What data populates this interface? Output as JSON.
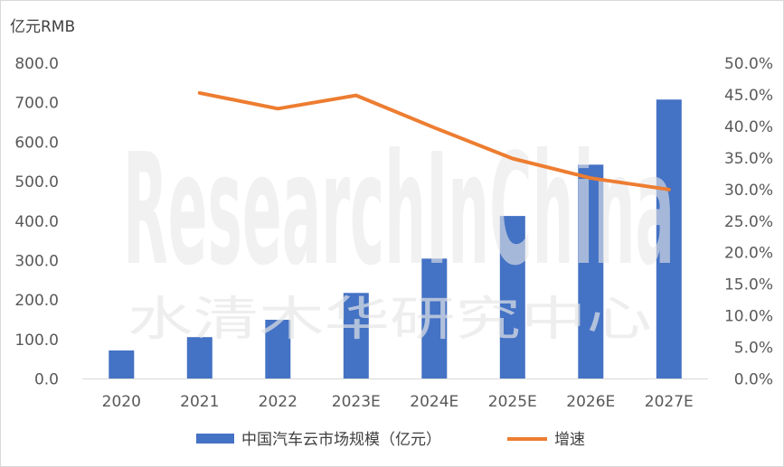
{
  "chart_data": {
    "type": "bar+line",
    "categories": [
      "2020",
      "2021",
      "2022",
      "2023E",
      "2024E",
      "2025E",
      "2026E",
      "2027E"
    ],
    "series": [
      {
        "name": "中国汽车云市场规模（亿元）",
        "type": "bar",
        "axis": "left",
        "values": [
          72,
          106,
          150,
          218,
          305,
          413,
          543,
          708
        ]
      },
      {
        "name": "增速",
        "type": "line",
        "axis": "right",
        "values": [
          null,
          45.3,
          42.8,
          44.9,
          39.8,
          34.9,
          31.8,
          30.0
        ]
      }
    ],
    "left_axis": {
      "unit_label": "亿元RMB",
      "ylim": [
        0,
        800
      ],
      "ticks": [
        "0.0",
        "100.0",
        "200.0",
        "300.0",
        "400.0",
        "500.0",
        "600.0",
        "700.0",
        "800.0"
      ]
    },
    "right_axis": {
      "ylim": [
        0,
        50
      ],
      "ticks": [
        "0.0%",
        "5.0%",
        "10.0%",
        "15.0%",
        "20.0%",
        "25.0%",
        "30.0%",
        "35.0%",
        "40.0%",
        "45.0%",
        "50.0%"
      ]
    },
    "grid": false,
    "legend_position": "bottom",
    "colors": {
      "bar": "#4472c4",
      "line": "#ed7d31"
    }
  },
  "watermark": {
    "text": "ResearchInChina",
    "subtitle": "水清木华研究中心"
  }
}
